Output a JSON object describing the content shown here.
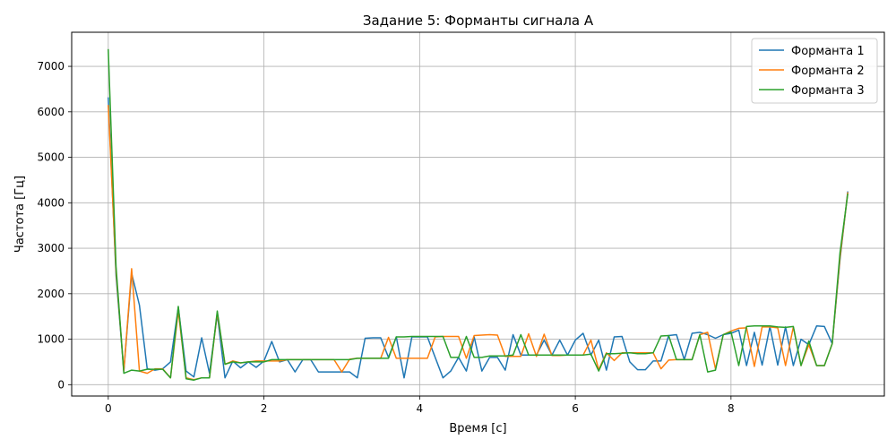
{
  "chart_data": {
    "type": "line",
    "title": "Задание 5: Форманты сигнала A",
    "xlabel": "Время [с]",
    "ylabel": "Частота [Гц]",
    "xlim": [
      -0.47,
      9.97
    ],
    "ylim": [
      -250,
      7750
    ],
    "xticks": [
      0,
      2,
      4,
      6,
      8
    ],
    "yticks": [
      0,
      1000,
      2000,
      3000,
      4000,
      5000,
      6000,
      7000
    ],
    "grid": true,
    "legend_position": "top-right",
    "x": [
      0,
      0.1,
      0.2,
      0.3,
      0.4,
      0.5,
      0.6,
      0.7,
      0.8,
      0.9,
      1.0,
      1.1,
      1.2,
      1.3,
      1.4,
      1.5,
      1.6,
      1.7,
      1.8,
      1.9,
      2.0,
      2.1,
      2.2,
      2.3,
      2.4,
      2.5,
      2.6,
      2.7,
      2.8,
      2.9,
      3.0,
      3.1,
      3.2,
      3.3,
      3.4,
      3.5,
      3.6,
      3.7,
      3.8,
      3.9,
      4.0,
      4.1,
      4.2,
      4.3,
      4.4,
      4.5,
      4.6,
      4.7,
      4.8,
      4.9,
      5.0,
      5.1,
      5.2,
      5.3,
      5.4,
      5.5,
      5.6,
      5.7,
      5.8,
      5.9,
      6.0,
      6.1,
      6.2,
      6.3,
      6.4,
      6.5,
      6.6,
      6.7,
      6.8,
      6.9,
      7.0,
      7.1,
      7.2,
      7.3,
      7.4,
      7.5,
      7.6,
      7.7,
      7.8,
      7.9,
      8.0,
      8.1,
      8.2,
      8.3,
      8.4,
      8.5,
      8.6,
      8.7,
      8.8,
      8.9,
      9.0,
      9.1,
      9.2,
      9.3,
      9.4,
      9.5
    ],
    "series": [
      {
        "name": "Форманта 1",
        "color": "#1f77b4",
        "values": [
          6320,
          2400,
          300,
          2450,
          1750,
          350,
          320,
          350,
          500,
          1700,
          300,
          170,
          1030,
          250,
          1550,
          150,
          520,
          370,
          500,
          380,
          520,
          950,
          500,
          550,
          280,
          550,
          550,
          280,
          280,
          280,
          280,
          280,
          150,
          1020,
          1030,
          1030,
          600,
          1050,
          150,
          1050,
          1050,
          1050,
          600,
          150,
          300,
          600,
          300,
          1050,
          300,
          600,
          600,
          320,
          1100,
          650,
          650,
          650,
          980,
          650,
          980,
          650,
          980,
          1130,
          650,
          980,
          320,
          1050,
          1060,
          500,
          330,
          330,
          520,
          520,
          1080,
          1100,
          550,
          1130,
          1150,
          1100,
          1020,
          1100,
          1130,
          1200,
          420,
          1150,
          430,
          1280,
          430,
          1270,
          420,
          1000,
          880,
          1290,
          1280,
          900,
          2750,
          4250
        ]
      },
      {
        "name": "Форманта 2",
        "color": "#ff7f0e",
        "values": [
          6150,
          2500,
          300,
          2550,
          300,
          250,
          350,
          350,
          150,
          1620,
          150,
          110,
          150,
          150,
          1580,
          450,
          520,
          480,
          500,
          520,
          520,
          520,
          520,
          550,
          550,
          550,
          550,
          550,
          550,
          550,
          280,
          560,
          580,
          580,
          580,
          580,
          1040,
          580,
          580,
          580,
          580,
          580,
          1050,
          1060,
          1060,
          1060,
          580,
          1080,
          1090,
          1100,
          1090,
          620,
          620,
          620,
          1120,
          620,
          1110,
          640,
          640,
          650,
          650,
          650,
          980,
          330,
          700,
          530,
          700,
          700,
          700,
          700,
          700,
          350,
          540,
          550,
          550,
          550,
          1100,
          1150,
          350,
          1100,
          1180,
          1240,
          1250,
          400,
          1270,
          1270,
          1250,
          420,
          1270,
          420,
          880,
          420,
          420,
          900,
          2800,
          4230
        ]
      },
      {
        "name": "Форманта 3",
        "color": "#2ca02c",
        "values": [
          7380,
          2600,
          250,
          320,
          300,
          340,
          340,
          340,
          150,
          1720,
          130,
          100,
          150,
          150,
          1620,
          450,
          500,
          480,
          500,
          500,
          500,
          550,
          550,
          550,
          550,
          550,
          550,
          550,
          550,
          550,
          550,
          550,
          580,
          580,
          580,
          580,
          580,
          1050,
          1050,
          1060,
          1060,
          1060,
          1060,
          1060,
          600,
          600,
          1060,
          600,
          600,
          630,
          630,
          630,
          650,
          1100,
          650,
          650,
          650,
          650,
          650,
          650,
          650,
          650,
          670,
          300,
          680,
          680,
          690,
          700,
          680,
          680,
          700,
          1070,
          1080,
          550,
          550,
          550,
          1100,
          280,
          320,
          1100,
          1160,
          420,
          1280,
          1290,
          1290,
          1290,
          1270,
          1260,
          1280,
          420,
          960,
          420,
          420,
          900,
          2900,
          4200
        ]
      }
    ]
  }
}
